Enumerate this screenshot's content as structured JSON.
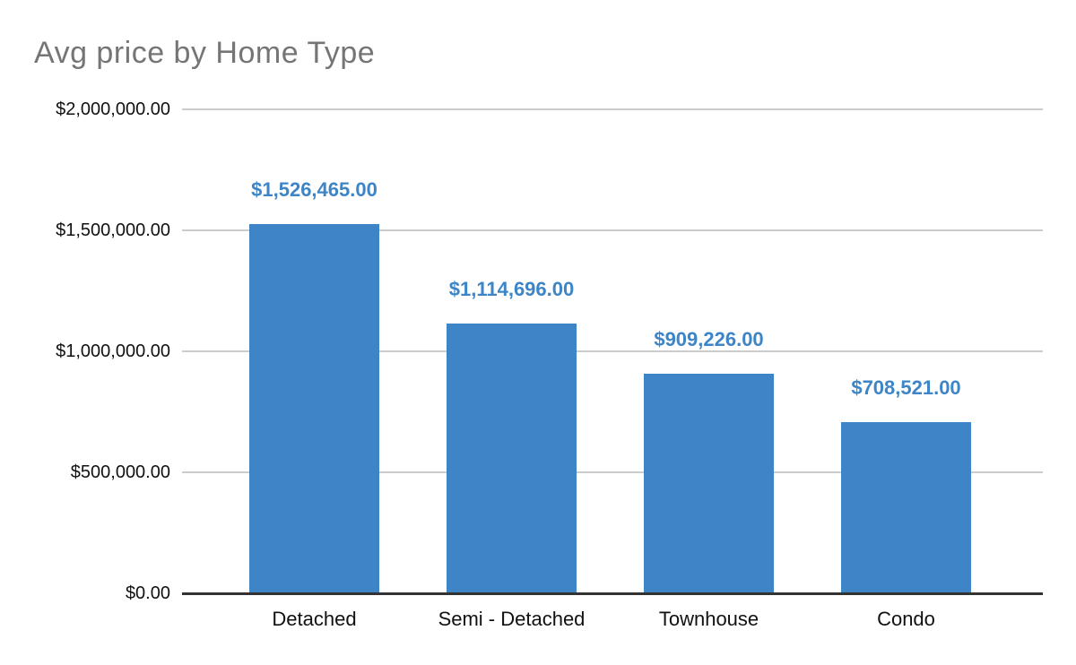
{
  "chart_data": {
    "type": "bar",
    "title": "Avg price by Home Type",
    "categories": [
      "Detached",
      "Semi - Detached",
      "Townhouse",
      "Condo"
    ],
    "values": [
      1526465,
      1114696,
      909226,
      708521
    ],
    "data_labels": [
      "$1,526,465.00",
      "$1,114,696.00",
      "$909,226.00",
      "$708,521.00"
    ],
    "xlabel": "",
    "ylabel": "",
    "ylim": [
      0,
      2000000
    ],
    "y_ticks": [
      {
        "value": 0,
        "label": "$0.00"
      },
      {
        "value": 500000,
        "label": "$500,000.00"
      },
      {
        "value": 1000000,
        "label": "$1,000,000.00"
      },
      {
        "value": 1500000,
        "label": "$1,500,000.00"
      },
      {
        "value": 2000000,
        "label": "$2,000,000.00"
      }
    ],
    "grid": true,
    "legend_position": "none",
    "colors": {
      "bar": "#3d85c6",
      "data_label": "#3d85c6",
      "title": "#757575",
      "axis_text": "#111111",
      "gridline": "#cccccc",
      "axis_line": "#333333",
      "background": "#ffffff"
    }
  }
}
